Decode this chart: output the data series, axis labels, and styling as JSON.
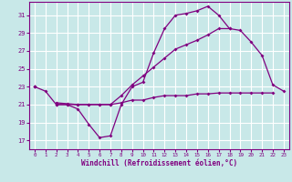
{
  "xlabel": "Windchill (Refroidissement éolien,°C)",
  "background_color": "#c8e8e8",
  "line_color": "#800080",
  "grid_color": "#ffffff",
  "x_values": [
    0,
    1,
    2,
    3,
    4,
    5,
    6,
    7,
    8,
    9,
    10,
    11,
    12,
    13,
    14,
    15,
    16,
    17,
    18,
    19,
    20,
    21,
    22,
    23
  ],
  "ylim": [
    16.0,
    32.5
  ],
  "xlim": [
    -0.5,
    23.5
  ],
  "yticks": [
    17,
    19,
    21,
    23,
    25,
    27,
    29,
    31
  ],
  "xticks": [
    0,
    1,
    2,
    3,
    4,
    5,
    6,
    7,
    8,
    9,
    10,
    11,
    12,
    13,
    14,
    15,
    16,
    17,
    18,
    19,
    20,
    21,
    22,
    23
  ],
  "line1": [
    23,
    22.5,
    21,
    21,
    20.5,
    18.8,
    17.3,
    17.5,
    21,
    23,
    23.5,
    26.8,
    29.5,
    31,
    31.2,
    31.5,
    32,
    31,
    29.5,
    null,
    null,
    null,
    null,
    null
  ],
  "line2": [
    23,
    null,
    21,
    21,
    21,
    21,
    21,
    21,
    21.2,
    21.5,
    21.5,
    21.8,
    22,
    22,
    22,
    22.2,
    22.2,
    22.3,
    22.3,
    22.3,
    22.3,
    22.3,
    22.3,
    null
  ],
  "line3": [
    23,
    null,
    21.2,
    21.1,
    21,
    21,
    21,
    21,
    22,
    23.2,
    24.2,
    25.2,
    26.2,
    27.2,
    27.7,
    28.2,
    28.8,
    29.5,
    29.5,
    29.3,
    28.0,
    26.5,
    23.2,
    22.5
  ]
}
